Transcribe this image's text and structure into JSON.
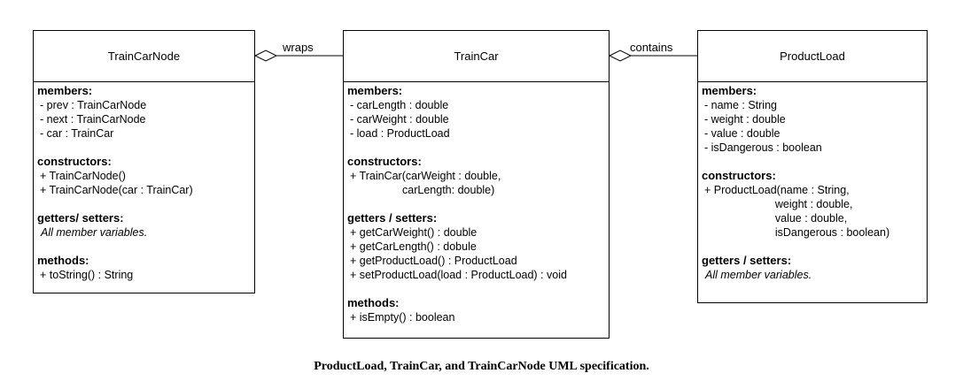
{
  "classes": {
    "train_car_node": {
      "name": "TrainCarNode",
      "members_title": "members:",
      "members": [
        "- prev : TrainCarNode",
        "- next : TrainCarNode",
        "- car : TrainCar"
      ],
      "constructors_title": "constructors:",
      "constructors": [
        "+ TrainCarNode()",
        "+ TrainCarNode(car : TrainCar)"
      ],
      "getters_title": "getters/ setters:",
      "getters_note": "All member variables.",
      "methods_title": "methods:",
      "methods": [
        "+ toString() : String"
      ]
    },
    "train_car": {
      "name": "TrainCar",
      "members_title": "members:",
      "members": [
        "- carLength : double",
        "- carWeight : double",
        "- load : ProductLoad"
      ],
      "constructors_title": "constructors:",
      "constructors": [
        "+ TrainCar(carWeight : double,",
        "                 carLength: double)"
      ],
      "getters_title": "getters / setters:",
      "getters": [
        "+ getCarWeight() : double",
        "+ getCarLength() : dobule",
        "+ getProductLoad() : ProductLoad",
        "+ setProductLoad(load : ProductLoad) : void"
      ],
      "methods_title": "methods:",
      "methods": [
        "+ isEmpty() : boolean"
      ]
    },
    "product_load": {
      "name": "ProductLoad",
      "members_title": "members:",
      "members": [
        "- name : String",
        "- weight : double",
        "- value : double",
        "- isDangerous : boolean"
      ],
      "constructors_title": "constructors:",
      "constructors": [
        "+ ProductLoad(name : String,",
        "                       weight : double,",
        "                       value : double,",
        "                       isDangerous : boolean)"
      ],
      "getters_title": "getters / setters:",
      "getters_note": "All member variables."
    }
  },
  "relations": {
    "wraps_label": "wraps",
    "contains_label": "contains"
  },
  "caption": "ProductLoad, TrainCar, and TrainCarNode UML specification."
}
